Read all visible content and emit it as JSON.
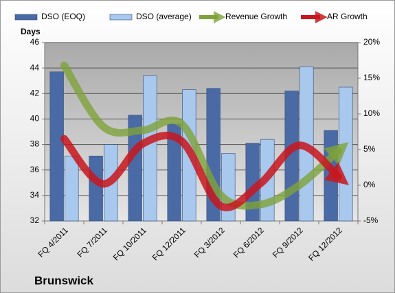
{
  "chart_data": {
    "type": "bar",
    "title": "Brunswick",
    "y_label": "Days",
    "categories": [
      "FQ 4/2011",
      "FQ 7/2011",
      "FQ 10/2011",
      "FQ 12/2011",
      "FQ 3/2012",
      "FQ 6/2012",
      "FQ 9/2012",
      "FQ 12/2012"
    ],
    "series": [
      {
        "name": "DSO (EOQ)",
        "color": "#4a6aa5",
        "values": [
          43.7,
          37.1,
          40.3,
          39.6,
          42.4,
          38.1,
          42.2,
          39.1
        ]
      },
      {
        "name": "DSO (average)",
        "color": "#a8c8ee",
        "values": [
          37.1,
          38.0,
          43.4,
          42.3,
          37.3,
          38.4,
          44.1,
          42.5
        ]
      },
      {
        "name": "Revenue Growth",
        "type": "line",
        "axis": "y2",
        "color": "#7ea33a",
        "values": [
          16.8,
          8.2,
          7.7,
          8.6,
          -1.4,
          -2.7,
          0.0,
          4.8
        ]
      },
      {
        "name": "AR Growth",
        "type": "line",
        "axis": "y2",
        "color": "#c8161d",
        "values": [
          6.5,
          0.2,
          5.8,
          6.2,
          -2.9,
          0.2,
          5.6,
          1.2
        ]
      }
    ],
    "ylim": [
      32,
      46
    ],
    "yticks": [
      32,
      34,
      36,
      38,
      40,
      42,
      44,
      46
    ],
    "y2lim": [
      -5,
      20
    ],
    "y2ticks": [
      {
        "value": -5,
        "label": "-5%"
      },
      {
        "value": 0,
        "label": "0%"
      },
      {
        "value": 5,
        "label": "5%"
      },
      {
        "value": 10,
        "label": "10%"
      },
      {
        "value": 15,
        "label": "15%"
      },
      {
        "value": 20,
        "label": "20%"
      }
    ],
    "grid": true
  }
}
